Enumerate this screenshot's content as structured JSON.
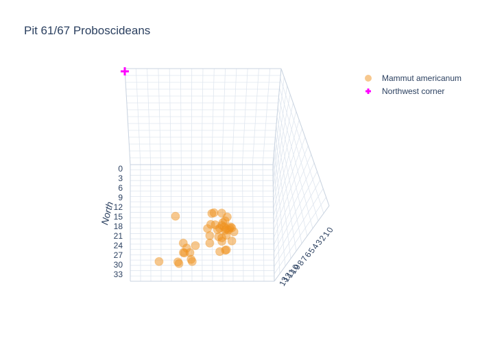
{
  "chart_data": {
    "type": "scatter3d",
    "title": "Pit 61/67 Proboscideans",
    "axes": {
      "north": {
        "title": "North",
        "range": [
          0,
          33
        ],
        "ticks": [
          "0",
          "3",
          "6",
          "9",
          "12",
          "15",
          "18",
          "21",
          "24",
          "27",
          "30",
          "33"
        ]
      },
      "east": {
        "ticks": [
          "0",
          "1",
          "2",
          "3",
          "4",
          "5",
          "6",
          "7",
          "8",
          "9",
          "10",
          "11",
          "12",
          "13"
        ]
      }
    },
    "legend": {
      "placement": "top-right",
      "entries": [
        {
          "name": "Mammut americanum",
          "symbol": "circle",
          "color": "#f0921d"
        },
        {
          "name": "Northwest corner",
          "symbol": "cross",
          "color": "#ff00ff"
        }
      ]
    },
    "series": [
      {
        "name": "Mammut americanum",
        "color": "#f0921d",
        "points": [
          {
            "east": 4.1,
            "north": 14.6
          },
          {
            "east": 7.4,
            "north": 13.8
          },
          {
            "east": 7.6,
            "north": 13.6
          },
          {
            "east": 8.3,
            "north": 13.7
          },
          {
            "east": 8.8,
            "north": 14.8
          },
          {
            "east": 8.6,
            "north": 15.9
          },
          {
            "east": 8.4,
            "north": 16.4
          },
          {
            "east": 8.3,
            "north": 17.2
          },
          {
            "east": 7.3,
            "north": 16.9
          },
          {
            "east": 8.1,
            "north": 18.0
          },
          {
            "east": 8.9,
            "north": 18.5
          },
          {
            "east": 9.1,
            "north": 17.6
          },
          {
            "east": 9.0,
            "north": 18.0
          },
          {
            "east": 8.6,
            "north": 18.6
          },
          {
            "east": 7.9,
            "north": 18.4
          },
          {
            "east": 8.5,
            "north": 17.6
          },
          {
            "east": 8.7,
            "north": 18.2
          },
          {
            "east": 9.2,
            "north": 17.9
          },
          {
            "east": 7.2,
            "north": 20.1
          },
          {
            "east": 8.0,
            "north": 20.4
          },
          {
            "east": 8.7,
            "north": 20.0
          },
          {
            "east": 9.4,
            "north": 19.0
          },
          {
            "east": 8.3,
            "north": 21.7
          },
          {
            "east": 9.2,
            "north": 21.6
          },
          {
            "east": 7.2,
            "north": 22.2
          },
          {
            "east": 8.6,
            "north": 24.2
          },
          {
            "east": 8.7,
            "north": 24.1
          },
          {
            "east": 8.1,
            "north": 24.6
          },
          {
            "east": 4.8,
            "north": 22.2
          },
          {
            "east": 5.1,
            "north": 23.6
          },
          {
            "east": 5.9,
            "north": 22.9
          },
          {
            "east": 4.8,
            "north": 24.9
          },
          {
            "east": 5.4,
            "north": 24.9
          },
          {
            "east": 4.9,
            "north": 25.0
          },
          {
            "east": 5.5,
            "north": 26.8
          },
          {
            "east": 5.6,
            "north": 27.4
          },
          {
            "east": 4.3,
            "north": 27.5
          },
          {
            "east": 4.4,
            "north": 28.0
          },
          {
            "east": 2.6,
            "north": 27.4
          },
          {
            "east": 8.3,
            "north": 20.7
          },
          {
            "east": 7.7,
            "north": 17.0
          },
          {
            "east": 7.0,
            "north": 18.1
          }
        ]
      },
      {
        "name": "Northwest corner",
        "color": "#ff00ff",
        "points": [
          {
            "east": 0,
            "north": 0
          }
        ]
      }
    ]
  }
}
